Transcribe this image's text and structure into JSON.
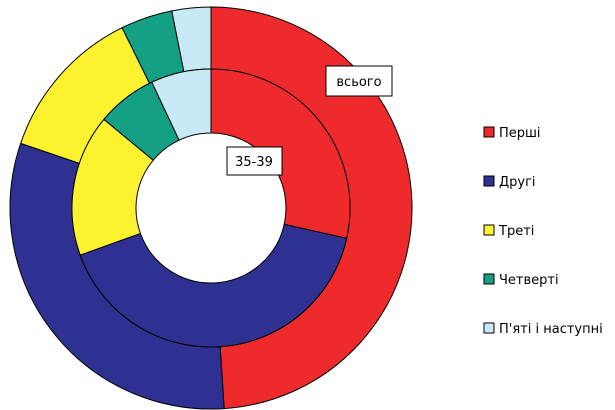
{
  "chart_data": {
    "type": "donut",
    "legend_position": "right",
    "categories": [
      "Перші",
      "Другі",
      "Треті",
      "Четверті",
      "П'яті і наступні"
    ],
    "colors": [
      "#ee2a2d",
      "#2e3192",
      "#fdf22f",
      "#13a085",
      "#c8eaf6"
    ],
    "rings": [
      {
        "name": "всього",
        "position": "outer",
        "values": [
          47.0,
          30.0,
          12.0,
          4.0,
          3.0
        ]
      },
      {
        "name": "35-39",
        "position": "inner",
        "values": [
          28.5,
          41.0,
          16.5,
          7.0,
          7.0
        ]
      }
    ]
  }
}
